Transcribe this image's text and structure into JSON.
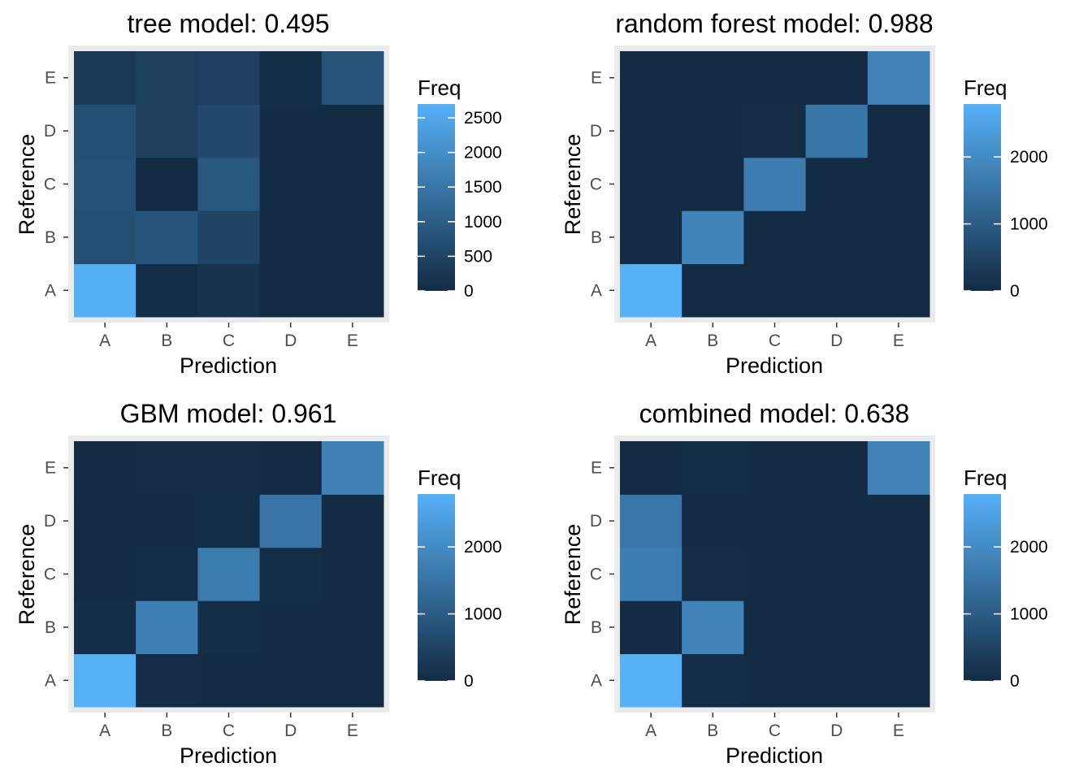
{
  "chart_data": [
    {
      "type": "heatmap",
      "title": "tree model:  0.495",
      "xlabel": "Prediction",
      "ylabel": "Reference",
      "x_categories": [
        "A",
        "B",
        "C",
        "D",
        "E"
      ],
      "y_categories": [
        "A",
        "B",
        "C",
        "D",
        "E"
      ],
      "z": [
        [
          2650,
          40,
          150,
          0,
          0
        ],
        [
          700,
          820,
          500,
          0,
          0
        ],
        [
          750,
          20,
          900,
          0,
          0
        ],
        [
          700,
          420,
          600,
          0,
          0
        ],
        [
          300,
          400,
          450,
          60,
          800
        ]
      ],
      "z_range": [
        0,
        2700
      ],
      "legend_title": "Freq",
      "legend_ticks": [
        0,
        500,
        1000,
        1500,
        2000,
        2500
      ]
    },
    {
      "type": "heatmap",
      "title": "random forest model:  0.988",
      "xlabel": "Prediction",
      "ylabel": "Reference",
      "x_categories": [
        "A",
        "B",
        "C",
        "D",
        "E"
      ],
      "y_categories": [
        "A",
        "B",
        "C",
        "D",
        "E"
      ],
      "z": [
        [
          2790,
          0,
          0,
          0,
          0
        ],
        [
          15,
          1850,
          5,
          0,
          0
        ],
        [
          0,
          5,
          1690,
          20,
          5
        ],
        [
          0,
          0,
          35,
          1560,
          0
        ],
        [
          0,
          0,
          5,
          5,
          1840
        ]
      ],
      "z_range": [
        0,
        2790
      ],
      "legend_title": "Freq",
      "legend_ticks": [
        0,
        1000,
        2000
      ]
    },
    {
      "type": "heatmap",
      "title": "GBM model:  0.961",
      "xlabel": "Prediction",
      "ylabel": "Reference",
      "x_categories": [
        "A",
        "B",
        "C",
        "D",
        "E"
      ],
      "y_categories": [
        "A",
        "B",
        "C",
        "D",
        "E"
      ],
      "z": [
        [
          2760,
          30,
          10,
          0,
          0
        ],
        [
          60,
          1760,
          55,
          5,
          10
        ],
        [
          5,
          50,
          1680,
          45,
          5
        ],
        [
          5,
          15,
          40,
          1530,
          10
        ],
        [
          10,
          30,
          25,
          20,
          1820
        ]
      ],
      "z_range": [
        0,
        2790
      ],
      "legend_title": "Freq",
      "legend_ticks": [
        0,
        1000,
        2000
      ]
    },
    {
      "type": "heatmap",
      "title": "combined model:  0.638",
      "xlabel": "Prediction",
      "ylabel": "Reference",
      "x_categories": [
        "A",
        "B",
        "C",
        "D",
        "E"
      ],
      "y_categories": [
        "A",
        "B",
        "C",
        "D",
        "E"
      ],
      "z": [
        [
          2790,
          40,
          0,
          0,
          0
        ],
        [
          15,
          1830,
          0,
          0,
          0
        ],
        [
          1700,
          30,
          0,
          0,
          0
        ],
        [
          1590,
          10,
          0,
          0,
          0
        ],
        [
          20,
          40,
          0,
          0,
          1830
        ]
      ],
      "z_range": [
        0,
        2790
      ],
      "legend_title": "Freq",
      "legend_ticks": [
        0,
        1000,
        2000
      ]
    }
  ],
  "colors": {
    "low": "#132B43",
    "high": "#56B1F7",
    "panel_background": "#EBEBEB",
    "tick_text": "#4D4D4D"
  }
}
